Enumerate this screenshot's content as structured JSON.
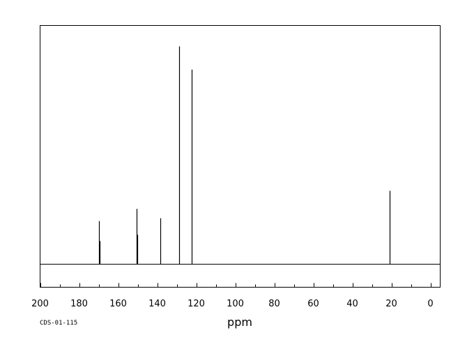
{
  "chart_data": {
    "type": "bar",
    "title": "",
    "xlabel": "ppm",
    "ylabel": "",
    "spectrum_id": "CDS-01-115",
    "x_axis_reversed": true,
    "xlim": [
      200,
      -5
    ],
    "ylim": [
      0,
      100
    ],
    "major_ticks": [
      200,
      180,
      160,
      140,
      120,
      100,
      80,
      60,
      40,
      20,
      0
    ],
    "minor_ticks": [
      190,
      170,
      150,
      130,
      110,
      90,
      70,
      50,
      30,
      10
    ],
    "grid": false,
    "legend": "none",
    "colors": {
      "line": "#000000",
      "background": "#ffffff"
    },
    "series": [
      {
        "peaks": [
          {
            "ppm": 169.8,
            "intensity": 19.8
          },
          {
            "ppm": 169.5,
            "intensity": 10.6
          },
          {
            "ppm": 150.7,
            "intensity": 25.4
          },
          {
            "ppm": 150.3,
            "intensity": 13.5
          },
          {
            "ppm": 138.5,
            "intensity": 21.1
          },
          {
            "ppm": 128.9,
            "intensity": 100.0
          },
          {
            "ppm": 122.4,
            "intensity": 89.4
          },
          {
            "ppm": 21.0,
            "intensity": 33.7
          }
        ]
      }
    ]
  }
}
